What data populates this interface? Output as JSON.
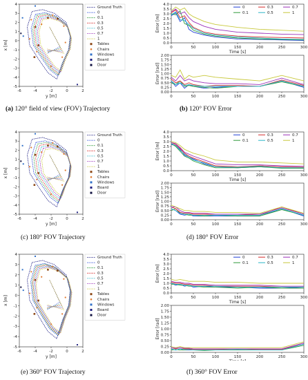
{
  "captions": [
    {
      "label": "(a)",
      "text": "120° field of view (FOV) Trajectory"
    },
    {
      "label": "(b)",
      "text": "120° FOV Error"
    },
    {
      "label": "(c)",
      "text": "180° FOV Trajectory"
    },
    {
      "label": "(d)",
      "text": "180° FOV Error"
    },
    {
      "label": "(e)",
      "text": "360° FOV Trajectory"
    },
    {
      "label": "(f)",
      "text": "360° FOV Error"
    }
  ],
  "colors": {
    "ground_truth": "#1a1a80",
    "0": "#1f3fd6",
    "0.1": "#2f9a3c",
    "0.3": "#d62a2a",
    "0.5": "#2ab5c8",
    "0.7": "#9b2fb8",
    "1": "#c8c83a",
    "tables": "#8b4513",
    "chairs": "#e07a30",
    "windows": "#3070c8",
    "board": "#202080",
    "door": "#101040"
  },
  "chart_data": [
    {
      "type": "scatter",
      "panel": "a",
      "xlabel": "y [m]",
      "ylabel": "x [m]",
      "xlim": [
        -6,
        2
      ],
      "ylim": [
        -5,
        4
      ],
      "xticks": [
        "-6",
        "-4",
        "-2",
        "0",
        "2"
      ],
      "yticks": [
        "-5",
        "-4",
        "-3",
        "-2",
        "-1",
        "0",
        "1",
        "2",
        "3",
        "4"
      ],
      "legend": [
        "Ground Truth",
        "0",
        "0.1",
        "0.3",
        "0.5",
        "0.7",
        "1",
        "Tables",
        "Chairs",
        "Windows",
        "Board",
        "Door"
      ],
      "legend_position": "top-right",
      "fov": 120
    },
    {
      "type": "line",
      "panel": "b",
      "fov": 120,
      "legend": [
        "0",
        "0.1",
        "0.3",
        "0.5",
        "0.7",
        "1"
      ],
      "legend_position": "top-right",
      "top": {
        "ylabel": "Error [m]",
        "xlabel": "Time [s]",
        "ylim": [
          0,
          4.0
        ],
        "yticks": [
          "0.0",
          "0.5",
          "1.0",
          "1.5",
          "2.0",
          "2.5",
          "3.0",
          "3.5",
          "4.0"
        ],
        "xticks": [
          "0",
          "50",
          "100",
          "150",
          "200",
          "250",
          "300"
        ],
        "x": [
          0,
          10,
          20,
          30,
          40,
          50,
          75,
          100,
          150,
          200,
          250,
          300
        ],
        "series": [
          {
            "name": "0",
            "values": [
              2.8,
              3.1,
              2.2,
              2.6,
              1.4,
              1.1,
              0.8,
              0.6,
              0.4,
              0.35,
              0.3,
              0.25
            ]
          },
          {
            "name": "0.1",
            "values": [
              3.0,
              2.9,
              3.3,
              2.0,
              1.8,
              1.3,
              0.9,
              0.7,
              0.5,
              0.4,
              0.35,
              0.3
            ]
          },
          {
            "name": "0.3",
            "values": [
              3.1,
              3.4,
              2.6,
              2.8,
              2.1,
              1.6,
              1.1,
              0.9,
              0.7,
              0.6,
              0.55,
              0.5
            ]
          },
          {
            "name": "0.5",
            "values": [
              2.9,
              3.2,
              2.4,
              2.3,
              1.9,
              1.5,
              1.0,
              0.8,
              0.6,
              0.5,
              0.4,
              0.35
            ]
          },
          {
            "name": "0.7",
            "values": [
              3.2,
              3.5,
              3.0,
              3.2,
              2.6,
              2.2,
              1.7,
              1.4,
              1.1,
              1.0,
              0.9,
              0.85
            ]
          },
          {
            "name": "1",
            "values": [
              3.3,
              3.7,
              3.4,
              3.6,
              3.0,
              2.7,
              2.2,
              1.9,
              1.6,
              1.4,
              1.3,
              1.2
            ]
          }
        ]
      },
      "bottom": {
        "ylabel": "Error [rad]",
        "xlabel": "",
        "ylim": [
          0,
          2.0
        ],
        "yticks": [
          "0.00",
          "0.25",
          "0.50",
          "0.75",
          "1.00",
          "1.25",
          "1.50",
          "1.75",
          "2.00"
        ],
        "xticks": [
          "0",
          "50",
          "100",
          "150",
          "200",
          "250",
          "300"
        ],
        "x": [
          0,
          10,
          20,
          30,
          40,
          50,
          75,
          100,
          150,
          200,
          250,
          300
        ],
        "series": [
          {
            "name": "0",
            "values": [
              0.6,
              0.3,
              0.5,
              0.2,
              0.4,
              0.3,
              0.2,
              0.25,
              0.3,
              0.3,
              0.6,
              0.25
            ]
          },
          {
            "name": "0.1",
            "values": [
              0.5,
              0.4,
              0.6,
              0.3,
              0.35,
              0.3,
              0.25,
              0.2,
              0.3,
              0.3,
              0.55,
              0.3
            ]
          },
          {
            "name": "0.3",
            "values": [
              0.7,
              0.5,
              0.6,
              0.4,
              0.5,
              0.4,
              0.3,
              0.35,
              0.35,
              0.3,
              0.65,
              0.35
            ]
          },
          {
            "name": "0.5",
            "values": [
              0.6,
              0.4,
              0.5,
              0.35,
              0.4,
              0.35,
              0.3,
              0.3,
              0.3,
              0.3,
              0.6,
              0.3
            ]
          },
          {
            "name": "0.7",
            "values": [
              0.8,
              0.6,
              0.9,
              0.6,
              0.7,
              0.6,
              0.5,
              0.45,
              0.45,
              0.4,
              0.75,
              0.4
            ]
          },
          {
            "name": "1",
            "values": [
              0.9,
              0.8,
              1.2,
              0.7,
              0.9,
              0.8,
              0.9,
              0.8,
              0.7,
              0.6,
              0.9,
              0.6
            ]
          }
        ]
      }
    },
    {
      "type": "scatter",
      "panel": "c",
      "xlabel": "y [m]",
      "ylabel": "x [m]",
      "xlim": [
        -6,
        2
      ],
      "ylim": [
        -5,
        4
      ],
      "xticks": [
        "-6",
        "-4",
        "-2",
        "0",
        "2"
      ],
      "yticks": [
        "-5",
        "-4",
        "-3",
        "-2",
        "-1",
        "0",
        "1",
        "2",
        "3",
        "4"
      ],
      "legend": [
        "Ground Truth",
        "0",
        "0.1",
        "0.3",
        "0.5",
        "0.7",
        "1",
        "Tables",
        "Chairs",
        "Windows",
        "Board",
        "Door"
      ],
      "legend_position": "top-right",
      "fov": 180
    },
    {
      "type": "line",
      "panel": "d",
      "fov": 180,
      "legend": [
        "0",
        "0.1",
        "0.3",
        "0.5",
        "0.7",
        "1"
      ],
      "legend_position": "top-right",
      "top": {
        "ylabel": "Error [m]",
        "xlabel": "Time [s]",
        "ylim": [
          0,
          4.0
        ],
        "yticks": [
          "0.0",
          "0.5",
          "1.0",
          "1.5",
          "2.0",
          "2.5",
          "3.0",
          "3.5",
          "4.0"
        ],
        "xticks": [
          "0",
          "50",
          "100",
          "150",
          "200",
          "250",
          "300"
        ],
        "x": [
          0,
          10,
          20,
          30,
          40,
          50,
          75,
          100,
          150,
          200,
          250,
          300
        ],
        "series": [
          {
            "name": "0",
            "values": [
              2.7,
              2.6,
              2.2,
              1.6,
              1.4,
              1.2,
              0.7,
              0.4,
              0.3,
              0.4,
              0.3,
              0.3
            ]
          },
          {
            "name": "0.1",
            "values": [
              2.8,
              2.5,
              2.0,
              1.5,
              1.3,
              1.0,
              0.6,
              0.3,
              0.3,
              0.4,
              0.25,
              0.25
            ]
          },
          {
            "name": "0.3",
            "values": [
              2.9,
              2.7,
              2.3,
              1.8,
              1.5,
              1.3,
              0.9,
              0.5,
              0.4,
              0.5,
              0.4,
              0.35
            ]
          },
          {
            "name": "0.5",
            "values": [
              2.8,
              2.6,
              2.1,
              1.7,
              1.4,
              1.1,
              0.8,
              0.4,
              0.35,
              0.45,
              0.3,
              0.3
            ]
          },
          {
            "name": "0.7",
            "values": [
              2.9,
              2.8,
              2.4,
              1.9,
              1.7,
              1.5,
              1.1,
              0.7,
              0.6,
              0.6,
              0.5,
              0.45
            ]
          },
          {
            "name": "1",
            "values": [
              3.0,
              2.9,
              2.6,
              2.2,
              2.0,
              1.8,
              1.5,
              1.1,
              0.9,
              0.9,
              0.8,
              0.7
            ]
          }
        ]
      },
      "bottom": {
        "ylabel": "Error [rad]",
        "xlabel": "",
        "ylim": [
          0,
          2.0
        ],
        "yticks": [
          "0.00",
          "0.25",
          "0.50",
          "0.75",
          "1.00",
          "1.25",
          "1.50",
          "1.75",
          "2.00"
        ],
        "xticks": [
          "0",
          "50",
          "100",
          "150",
          "200",
          "250",
          "300"
        ],
        "x": [
          0,
          10,
          20,
          30,
          40,
          50,
          75,
          100,
          150,
          200,
          250,
          300
        ],
        "series": [
          {
            "name": "0",
            "values": [
              0.6,
              0.5,
              0.3,
              0.25,
              0.3,
              0.2,
              0.2,
              0.2,
              0.2,
              0.2,
              0.6,
              0.2
            ]
          },
          {
            "name": "0.1",
            "values": [
              0.5,
              0.6,
              0.35,
              0.3,
              0.25,
              0.25,
              0.2,
              0.25,
              0.2,
              0.2,
              0.55,
              0.25
            ]
          },
          {
            "name": "0.3",
            "values": [
              0.7,
              0.6,
              0.4,
              0.35,
              0.35,
              0.3,
              0.3,
              0.3,
              0.3,
              0.25,
              0.7,
              0.3
            ]
          },
          {
            "name": "0.5",
            "values": [
              0.6,
              0.5,
              0.35,
              0.3,
              0.3,
              0.25,
              0.25,
              0.25,
              0.25,
              0.25,
              0.6,
              0.25
            ]
          },
          {
            "name": "0.7",
            "values": [
              0.7,
              0.7,
              0.5,
              0.4,
              0.4,
              0.35,
              0.35,
              0.3,
              0.3,
              0.3,
              0.65,
              0.3
            ]
          },
          {
            "name": "1",
            "values": [
              0.8,
              0.7,
              0.6,
              0.5,
              0.5,
              0.45,
              0.45,
              0.4,
              0.4,
              0.35,
              0.7,
              0.35
            ]
          }
        ]
      }
    },
    {
      "type": "scatter",
      "panel": "e",
      "xlabel": "y [m]",
      "ylabel": "x [m]",
      "xlim": [
        -6,
        2
      ],
      "ylim": [
        -5,
        4
      ],
      "xticks": [
        "-6",
        "-4",
        "-2",
        "0",
        "2"
      ],
      "yticks": [
        "-5",
        "-4",
        "-3",
        "-2",
        "-1",
        "0",
        "1",
        "2",
        "3",
        "4"
      ],
      "legend": [
        "Ground Truth",
        "0",
        "0.1",
        "0.3",
        "0.5",
        "0.7",
        "1",
        "Tables",
        "Chairs",
        "Windows",
        "Board",
        "Door"
      ],
      "legend_position": "top-right",
      "fov": 360
    },
    {
      "type": "line",
      "panel": "f",
      "fov": 360,
      "legend": [
        "0",
        "0.1",
        "0.3",
        "0.5",
        "0.7",
        "1"
      ],
      "legend_position": "top-right",
      "top": {
        "ylabel": "Error [m]",
        "xlabel": "Time [s]",
        "ylim": [
          0,
          4.0
        ],
        "yticks": [
          "0.0",
          "0.5",
          "1.0",
          "1.5",
          "2.0",
          "2.5",
          "3.0",
          "3.5",
          "4.0"
        ],
        "xticks": [
          "0",
          "50",
          "100",
          "150",
          "200",
          "250",
          "300"
        ],
        "x": [
          0,
          10,
          20,
          30,
          40,
          50,
          75,
          100,
          150,
          200,
          250,
          300
        ],
        "series": [
          {
            "name": "0",
            "values": [
              1.0,
              0.8,
              0.9,
              0.7,
              0.8,
              0.6,
              0.7,
              0.6,
              0.6,
              0.5,
              0.5,
              0.6
            ]
          },
          {
            "name": "0.1",
            "values": [
              0.9,
              0.9,
              0.8,
              0.8,
              0.7,
              0.7,
              0.6,
              0.6,
              0.5,
              0.6,
              0.5,
              0.5
            ]
          },
          {
            "name": "0.3",
            "values": [
              1.1,
              1.0,
              1.0,
              0.9,
              0.9,
              0.8,
              0.8,
              0.7,
              0.7,
              0.7,
              0.6,
              0.6
            ]
          },
          {
            "name": "0.5",
            "values": [
              1.0,
              0.9,
              0.9,
              0.8,
              0.8,
              0.7,
              0.7,
              0.7,
              0.6,
              0.6,
              0.6,
              0.6
            ]
          },
          {
            "name": "0.7",
            "values": [
              1.2,
              1.1,
              1.1,
              1.0,
              1.0,
              0.9,
              0.9,
              0.8,
              0.8,
              0.8,
              0.7,
              0.7
            ]
          },
          {
            "name": "1",
            "values": [
              1.4,
              1.3,
              1.4,
              1.3,
              1.2,
              1.2,
              1.2,
              1.1,
              1.1,
              1.0,
              1.0,
              1.0
            ]
          }
        ]
      },
      "bottom": {
        "ylabel": "Error [rad]",
        "xlabel": "Time [s]",
        "ylim": [
          0,
          2.0
        ],
        "yticks": [
          "0.00",
          "0.25",
          "0.50",
          "0.75",
          "1.00",
          "1.25",
          "1.50",
          "1.75",
          "2.00"
        ],
        "xticks": [
          "0",
          "50",
          "100",
          "150",
          "200",
          "250",
          "300"
        ],
        "x": [
          0,
          10,
          20,
          30,
          40,
          50,
          75,
          100,
          150,
          200,
          250,
          300
        ],
        "series": [
          {
            "name": "0",
            "values": [
              0.15,
              0.1,
              0.15,
              0.1,
              0.1,
              0.1,
              0.1,
              0.1,
              0.1,
              0.1,
              0.1,
              0.35
            ]
          },
          {
            "name": "0.1",
            "values": [
              0.1,
              0.12,
              0.1,
              0.1,
              0.12,
              0.1,
              0.08,
              0.1,
              0.1,
              0.1,
              0.1,
              0.3
            ]
          },
          {
            "name": "0.3",
            "values": [
              0.2,
              0.15,
              0.2,
              0.15,
              0.15,
              0.12,
              0.12,
              0.12,
              0.15,
              0.12,
              0.12,
              0.4
            ]
          },
          {
            "name": "0.5",
            "values": [
              0.15,
              0.1,
              0.15,
              0.12,
              0.12,
              0.1,
              0.1,
              0.1,
              0.12,
              0.1,
              0.1,
              0.35
            ]
          },
          {
            "name": "0.7",
            "values": [
              0.2,
              0.18,
              0.2,
              0.18,
              0.18,
              0.15,
              0.15,
              0.15,
              0.15,
              0.15,
              0.15,
              0.4
            ]
          },
          {
            "name": "1",
            "values": [
              0.25,
              0.2,
              0.25,
              0.2,
              0.2,
              0.2,
              0.2,
              0.2,
              0.2,
              0.2,
              0.2,
              0.45
            ]
          }
        ]
      }
    }
  ]
}
